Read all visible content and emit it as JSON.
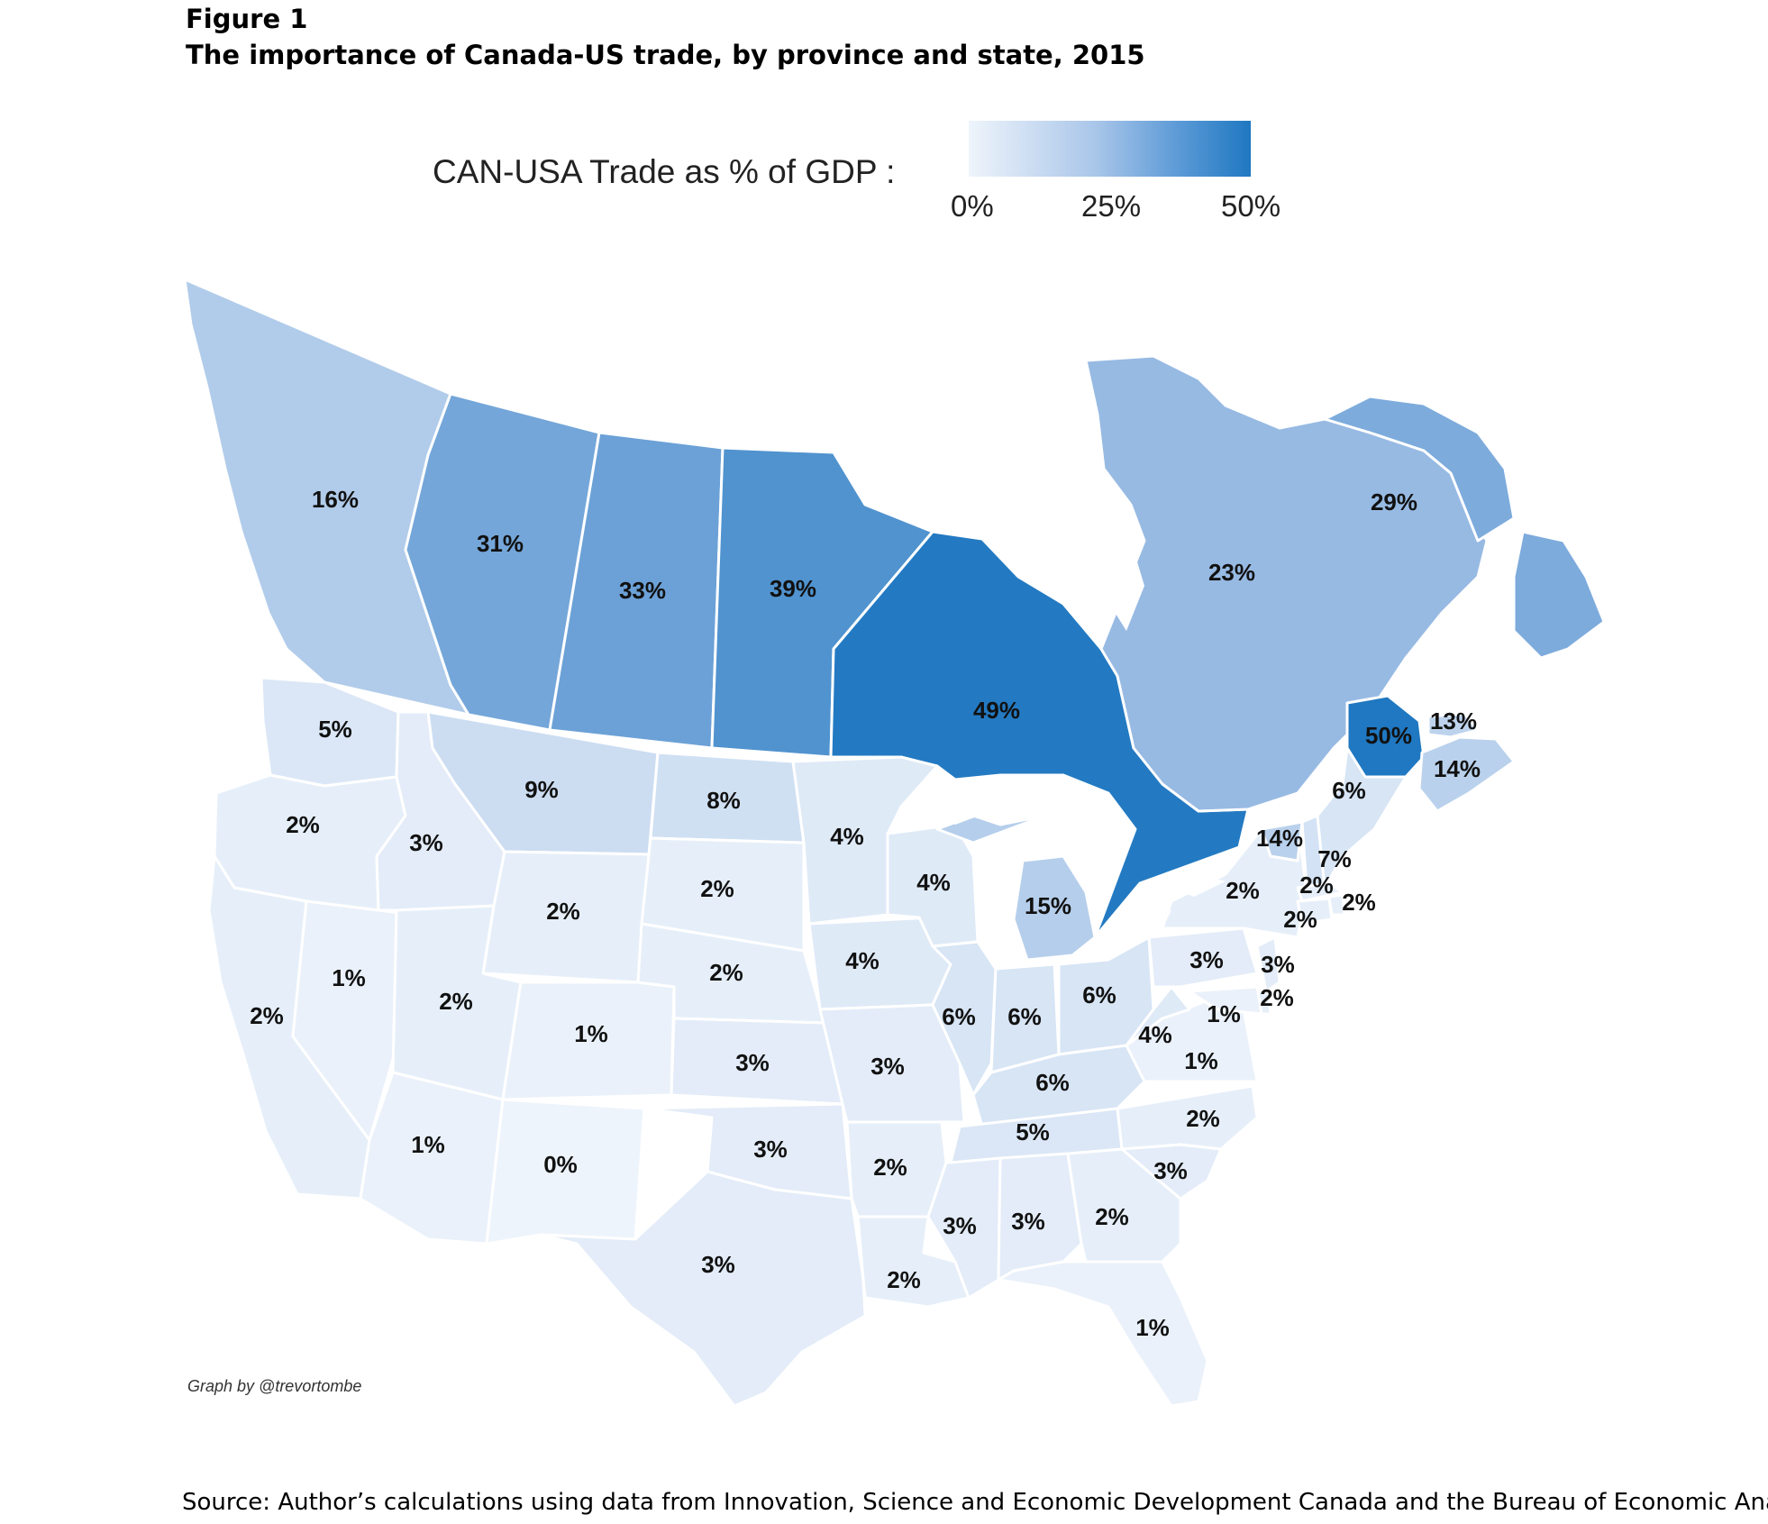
{
  "header": {
    "figure_label": "Figure 1",
    "title": "The importance of Canada-US trade, by province and state, 2015"
  },
  "legend": {
    "title": "CAN-USA Trade as % of GDP :",
    "ticks": [
      "0%",
      "25%",
      "50%"
    ],
    "color_low": "#eef4fb",
    "color_high": "#1f78c1"
  },
  "map": {
    "regions": [
      {
        "name": "British Columbia",
        "label": "16%",
        "value": 16
      },
      {
        "name": "Alberta",
        "label": "31%",
        "value": 31
      },
      {
        "name": "Saskatchewan",
        "label": "33%",
        "value": 33
      },
      {
        "name": "Manitoba",
        "label": "39%",
        "value": 39
      },
      {
        "name": "Ontario",
        "label": "49%",
        "value": 49
      },
      {
        "name": "Quebec",
        "label": "23%",
        "value": 23
      },
      {
        "name": "Newfoundland and Labrador",
        "label": "29%",
        "value": 29
      },
      {
        "name": "New Brunswick",
        "label": "50%",
        "value": 50
      },
      {
        "name": "Prince Edward Island",
        "label": "13%",
        "value": 13
      },
      {
        "name": "Nova Scotia",
        "label": "14%",
        "value": 14
      },
      {
        "name": "Washington",
        "label": "5%",
        "value": 5
      },
      {
        "name": "Oregon",
        "label": "2%",
        "value": 2
      },
      {
        "name": "California",
        "label": "2%",
        "value": 2
      },
      {
        "name": "Idaho",
        "label": "3%",
        "value": 3
      },
      {
        "name": "Nevada",
        "label": "1%",
        "value": 1
      },
      {
        "name": "Montana",
        "label": "9%",
        "value": 9
      },
      {
        "name": "Wyoming",
        "label": "2%",
        "value": 2
      },
      {
        "name": "Utah",
        "label": "2%",
        "value": 2
      },
      {
        "name": "Arizona",
        "label": "1%",
        "value": 1
      },
      {
        "name": "Colorado",
        "label": "1%",
        "value": 1
      },
      {
        "name": "New Mexico",
        "label": "0%",
        "value": 0
      },
      {
        "name": "North Dakota",
        "label": "8%",
        "value": 8
      },
      {
        "name": "South Dakota",
        "label": "2%",
        "value": 2
      },
      {
        "name": "Nebraska",
        "label": "2%",
        "value": 2
      },
      {
        "name": "Kansas",
        "label": "3%",
        "value": 3
      },
      {
        "name": "Oklahoma",
        "label": "3%",
        "value": 3
      },
      {
        "name": "Texas",
        "label": "3%",
        "value": 3
      },
      {
        "name": "Minnesota",
        "label": "4%",
        "value": 4
      },
      {
        "name": "Iowa",
        "label": "4%",
        "value": 4
      },
      {
        "name": "Missouri",
        "label": "3%",
        "value": 3
      },
      {
        "name": "Arkansas",
        "label": "2%",
        "value": 2
      },
      {
        "name": "Louisiana",
        "label": "2%",
        "value": 2
      },
      {
        "name": "Wisconsin",
        "label": "4%",
        "value": 4
      },
      {
        "name": "Illinois",
        "label": "6%",
        "value": 6
      },
      {
        "name": "Michigan",
        "label": "15%",
        "value": 15
      },
      {
        "name": "Indiana",
        "label": "6%",
        "value": 6
      },
      {
        "name": "Ohio",
        "label": "6%",
        "value": 6
      },
      {
        "name": "Kentucky",
        "label": "6%",
        "value": 6
      },
      {
        "name": "Tennessee",
        "label": "5%",
        "value": 5
      },
      {
        "name": "Mississippi",
        "label": "3%",
        "value": 3
      },
      {
        "name": "Alabama",
        "label": "3%",
        "value": 3
      },
      {
        "name": "Georgia",
        "label": "2%",
        "value": 2
      },
      {
        "name": "Florida",
        "label": "1%",
        "value": 1
      },
      {
        "name": "South Carolina",
        "label": "3%",
        "value": 3
      },
      {
        "name": "North Carolina",
        "label": "2%",
        "value": 2
      },
      {
        "name": "Virginia",
        "label": "1%",
        "value": 1
      },
      {
        "name": "West Virginia",
        "label": "4%",
        "value": 4
      },
      {
        "name": "Pennsylvania",
        "label": "3%",
        "value": 3
      },
      {
        "name": "New York",
        "label": "2%",
        "value": 2
      },
      {
        "name": "Vermont",
        "label": "14%",
        "value": 14
      },
      {
        "name": "New Hampshire",
        "label": "7%",
        "value": 7
      },
      {
        "name": "Maine",
        "label": "6%",
        "value": 6
      },
      {
        "name": "Massachusetts",
        "label": "2%",
        "value": 2
      },
      {
        "name": "Rhode Island",
        "label": "2%",
        "value": 2
      },
      {
        "name": "Connecticut",
        "label": "2%",
        "value": 2
      },
      {
        "name": "New Jersey",
        "label": "3%",
        "value": 3
      },
      {
        "name": "Delaware",
        "label": "2%",
        "value": 2
      },
      {
        "name": "Maryland",
        "label": "1%",
        "value": 1
      }
    ]
  },
  "credit": "Graph by @trevortombe",
  "source": "Source: Author’s calculations using data from Innovation, Science and Economic Development Canada and the Bureau of Economic Analysis."
}
